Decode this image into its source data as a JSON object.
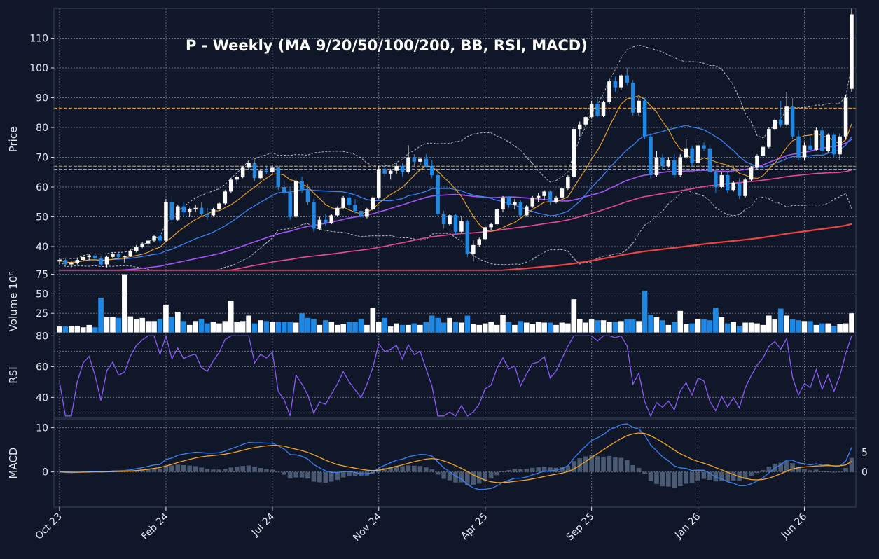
{
  "chart_data": {
    "type": "candlestick",
    "title": "P  -  Weekly  (MA 9/20/50/100/200, BB, RSI, MACD)",
    "colors": {
      "background": "#0f1729",
      "grid": "#8a93a6",
      "up_candle": "#ffffff",
      "down_candle": "#1e88e5",
      "ma9": "#f5a623",
      "ma20": "#3b82f6",
      "ma50": "#a855f7",
      "ma100": "#ec4899",
      "ma200": "#ef4444",
      "bb": "#b8bfcc",
      "rsi": "#8b5cf6",
      "macd": "#3b82f6",
      "signal": "#f5a623",
      "hist": "#4b5a73",
      "hline_orange": "#f5a623",
      "hline_green": "#84cc16"
    },
    "x_ticks": [
      {
        "label": "Oct 23",
        "week": 0
      },
      {
        "label": "Feb 24",
        "week": 18
      },
      {
        "label": "Jul 24",
        "week": 36
      },
      {
        "label": "Nov 24",
        "week": 54
      },
      {
        "label": "Apr 25",
        "week": 72
      },
      {
        "label": "Sep 25",
        "week": 90
      },
      {
        "label": "Jan 26",
        "week": 108
      },
      {
        "label": "Jun 26",
        "week": 126
      }
    ],
    "price_panel": {
      "ylabel": "Price",
      "ylim": [
        32,
        120
      ],
      "ticks": [
        40,
        50,
        60,
        70,
        80,
        90,
        100,
        110
      ],
      "hlines": [
        {
          "value": 86.5,
          "color": "orange"
        },
        {
          "value": 67.0,
          "color": "orange"
        },
        {
          "value": 66.0,
          "color": "green"
        }
      ]
    },
    "volume_panel": {
      "ylabel": "Volume  10⁶",
      "ylim": [
        0,
        80
      ],
      "ticks": [
        25,
        50,
        75
      ]
    },
    "rsi_panel": {
      "ylabel": "RSI",
      "ylim": [
        27,
        82
      ],
      "ticks": [
        40,
        60,
        80
      ],
      "hlines": [
        30,
        70
      ]
    },
    "macd_panel": {
      "ylabel": "MACD",
      "ylim": [
        -8,
        12
      ],
      "ticks": [
        0,
        10
      ],
      "right_ticks": [
        0,
        5
      ]
    },
    "candles": [
      [
        35,
        36,
        34,
        35.5,
        8
      ],
      [
        35.5,
        36,
        33.5,
        34,
        8
      ],
      [
        34,
        35,
        33,
        34.5,
        9
      ],
      [
        34.5,
        36,
        34,
        35.5,
        9
      ],
      [
        35.5,
        37,
        35,
        36.5,
        7
      ],
      [
        36.5,
        37.5,
        35.5,
        37,
        10
      ],
      [
        37,
        38,
        35.5,
        36,
        7
      ],
      [
        36,
        37,
        33.5,
        34,
        45
      ],
      [
        34,
        37,
        33,
        36.5,
        20
      ],
      [
        36.5,
        38,
        36,
        37.5,
        20
      ],
      [
        37.5,
        38,
        35.5,
        36.5,
        19
      ],
      [
        36.5,
        37,
        34.5,
        36.8,
        75
      ],
      [
        36.8,
        39,
        36.5,
        38.5,
        21
      ],
      [
        38.5,
        40.5,
        38,
        40,
        17
      ],
      [
        40,
        41.5,
        39.5,
        41,
        19
      ],
      [
        41,
        42.5,
        40,
        42,
        15
      ],
      [
        42,
        44,
        41.5,
        43.5,
        15
      ],
      [
        43.5,
        44.5,
        41,
        42,
        18
      ],
      [
        42,
        56,
        41.5,
        55,
        36
      ],
      [
        55,
        57,
        48,
        49,
        20
      ],
      [
        49,
        54,
        48.5,
        53.5,
        27
      ],
      [
        53.5,
        55,
        50,
        51.5,
        15
      ],
      [
        51.5,
        53,
        50,
        52.5,
        10
      ],
      [
        52.5,
        54,
        51.5,
        53,
        15
      ],
      [
        53,
        55,
        50,
        51,
        18
      ],
      [
        51,
        53,
        49,
        50.5,
        12
      ],
      [
        50.5,
        53,
        50,
        52.5,
        14
      ],
      [
        52.5,
        55,
        52,
        54.5,
        12
      ],
      [
        54.5,
        59,
        54,
        58.5,
        15
      ],
      [
        58.5,
        63,
        58,
        62.5,
        41
      ],
      [
        62.5,
        64,
        61,
        63.5,
        14
      ],
      [
        63.5,
        67,
        63,
        66.5,
        15
      ],
      [
        66.5,
        69,
        66,
        68,
        22
      ],
      [
        68,
        69,
        62,
        63,
        12
      ],
      [
        63,
        66,
        62.5,
        65.5,
        16
      ],
      [
        65.5,
        67,
        64.5,
        65,
        15
      ],
      [
        65,
        67.5,
        64,
        66.5,
        14
      ],
      [
        66.5,
        67,
        59,
        60,
        14
      ],
      [
        60,
        62,
        57,
        58,
        14
      ],
      [
        58,
        60,
        49,
        50,
        14
      ],
      [
        50,
        63,
        49.5,
        62,
        13
      ],
      [
        62,
        63.5,
        58,
        59,
        25
      ],
      [
        59,
        61,
        54,
        55,
        19
      ],
      [
        55,
        56,
        45,
        46,
        18
      ],
      [
        46,
        50,
        45.5,
        49,
        10
      ],
      [
        49,
        51,
        47,
        48,
        16
      ],
      [
        48,
        51,
        47.5,
        50.5,
        14
      ],
      [
        50.5,
        53.5,
        50,
        53,
        10
      ],
      [
        53,
        57,
        52.5,
        56.5,
        11
      ],
      [
        56.5,
        58,
        53,
        54,
        14
      ],
      [
        54,
        56,
        51,
        52,
        14
      ],
      [
        52,
        54,
        49,
        50,
        18
      ],
      [
        50,
        53,
        49.5,
        52.5,
        10
      ],
      [
        52.5,
        57,
        52,
        56.5,
        32
      ],
      [
        56.5,
        67,
        56,
        66,
        14
      ],
      [
        66,
        68,
        63.5,
        64.5,
        19
      ],
      [
        64.5,
        66,
        62.5,
        65.5,
        8
      ],
      [
        65.5,
        68,
        64.5,
        67,
        12
      ],
      [
        67,
        68,
        63.5,
        65,
        10
      ],
      [
        65,
        74,
        64.5,
        70,
        10
      ],
      [
        70,
        71,
        67,
        68.5,
        12
      ],
      [
        68.5,
        70,
        67.5,
        69.5,
        10
      ],
      [
        69.5,
        71,
        66.5,
        67,
        14
      ],
      [
        67,
        69,
        63,
        64,
        22
      ],
      [
        64,
        65,
        50,
        51,
        19
      ],
      [
        51,
        52,
        46,
        47.5,
        13
      ],
      [
        47.5,
        51,
        47,
        50.5,
        19
      ],
      [
        50.5,
        51,
        44,
        45,
        14
      ],
      [
        45,
        50,
        44.5,
        48.5,
        13
      ],
      [
        48.5,
        49,
        36.5,
        37.5,
        22
      ],
      [
        37.5,
        42,
        35,
        40.5,
        11
      ],
      [
        40.5,
        43,
        40,
        42.5,
        10
      ],
      [
        42.5,
        47,
        42,
        46.5,
        12
      ],
      [
        46.5,
        48,
        45.5,
        47.5,
        14
      ],
      [
        47.5,
        53,
        47,
        52.5,
        10
      ],
      [
        52.5,
        57,
        51.5,
        56.5,
        23
      ],
      [
        56.5,
        57,
        53,
        54,
        14
      ],
      [
        54,
        56,
        52.5,
        55,
        10
      ],
      [
        55,
        55.5,
        49.5,
        50.5,
        15
      ],
      [
        50.5,
        54,
        50,
        53.5,
        13
      ],
      [
        53.5,
        57,
        53,
        56.5,
        11
      ],
      [
        56.5,
        58,
        55,
        57,
        14
      ],
      [
        57,
        59,
        55.5,
        58.5,
        13
      ],
      [
        58.5,
        59,
        54,
        55,
        13
      ],
      [
        55,
        57,
        54.5,
        56.5,
        10
      ],
      [
        56.5,
        60,
        56,
        59.5,
        13
      ],
      [
        59.5,
        64,
        59,
        63.5,
        12
      ],
      [
        63.5,
        80,
        63,
        79.5,
        43
      ],
      [
        79.5,
        82,
        77,
        81,
        18
      ],
      [
        81,
        84,
        80,
        83.5,
        13
      ],
      [
        83.5,
        89,
        83,
        88,
        17
      ],
      [
        88,
        90,
        83.5,
        84,
        16
      ],
      [
        84,
        89,
        83.5,
        88.5,
        16
      ],
      [
        88.5,
        96,
        88,
        95.5,
        14
      ],
      [
        95.5,
        97,
        92,
        93.5,
        14
      ],
      [
        93.5,
        98,
        92.5,
        97.5,
        15
      ],
      [
        97.5,
        100,
        94,
        95,
        17
      ],
      [
        95,
        96,
        84,
        85,
        17
      ],
      [
        85,
        90,
        84,
        89,
        15
      ],
      [
        89,
        90,
        76,
        77,
        54
      ],
      [
        77,
        78,
        63,
        64,
        23
      ],
      [
        64,
        72,
        63.5,
        70,
        20
      ],
      [
        70,
        71,
        66,
        67,
        16
      ],
      [
        67,
        70,
        66.5,
        69,
        10
      ],
      [
        69,
        71,
        63,
        64,
        14
      ],
      [
        64,
        71,
        63.5,
        70,
        28
      ],
      [
        70,
        76,
        69.5,
        73,
        11
      ],
      [
        73,
        74,
        67,
        68,
        12
      ],
      [
        68,
        75,
        67.5,
        74,
        18
      ],
      [
        74,
        75,
        72,
        73,
        17
      ],
      [
        73,
        74,
        64,
        65,
        16
      ],
      [
        65,
        66,
        58,
        60,
        32
      ],
      [
        60,
        65,
        59.5,
        64,
        20
      ],
      [
        64,
        65,
        58,
        59,
        12
      ],
      [
        59,
        62,
        58.5,
        61.5,
        14
      ],
      [
        61.5,
        63,
        56,
        57,
        9
      ],
      [
        57,
        63,
        56.5,
        62.5,
        13
      ],
      [
        62.5,
        67,
        62,
        66.5,
        13
      ],
      [
        66.5,
        71,
        66,
        70.5,
        12
      ],
      [
        70.5,
        74,
        70,
        73.5,
        10
      ],
      [
        73.5,
        80,
        73,
        79.5,
        22
      ],
      [
        79.5,
        83,
        79,
        82.5,
        17
      ],
      [
        82.5,
        89,
        80,
        81,
        31
      ],
      [
        81,
        92,
        80.5,
        87,
        22
      ],
      [
        87,
        90,
        76,
        77,
        17
      ],
      [
        77,
        79,
        69,
        70,
        16
      ],
      [
        70,
        75,
        69,
        74,
        15
      ],
      [
        74,
        77,
        72,
        72.5,
        15
      ],
      [
        72.5,
        80,
        72,
        79,
        10
      ],
      [
        79,
        80,
        71,
        72,
        12
      ],
      [
        72,
        78,
        71.5,
        77.5,
        12
      ],
      [
        77.5,
        78,
        70,
        71,
        9
      ],
      [
        71,
        78,
        69,
        77,
        11
      ],
      [
        77,
        91,
        76,
        90,
        12
      ],
      [
        93,
        120,
        92,
        118,
        25
      ]
    ]
  }
}
